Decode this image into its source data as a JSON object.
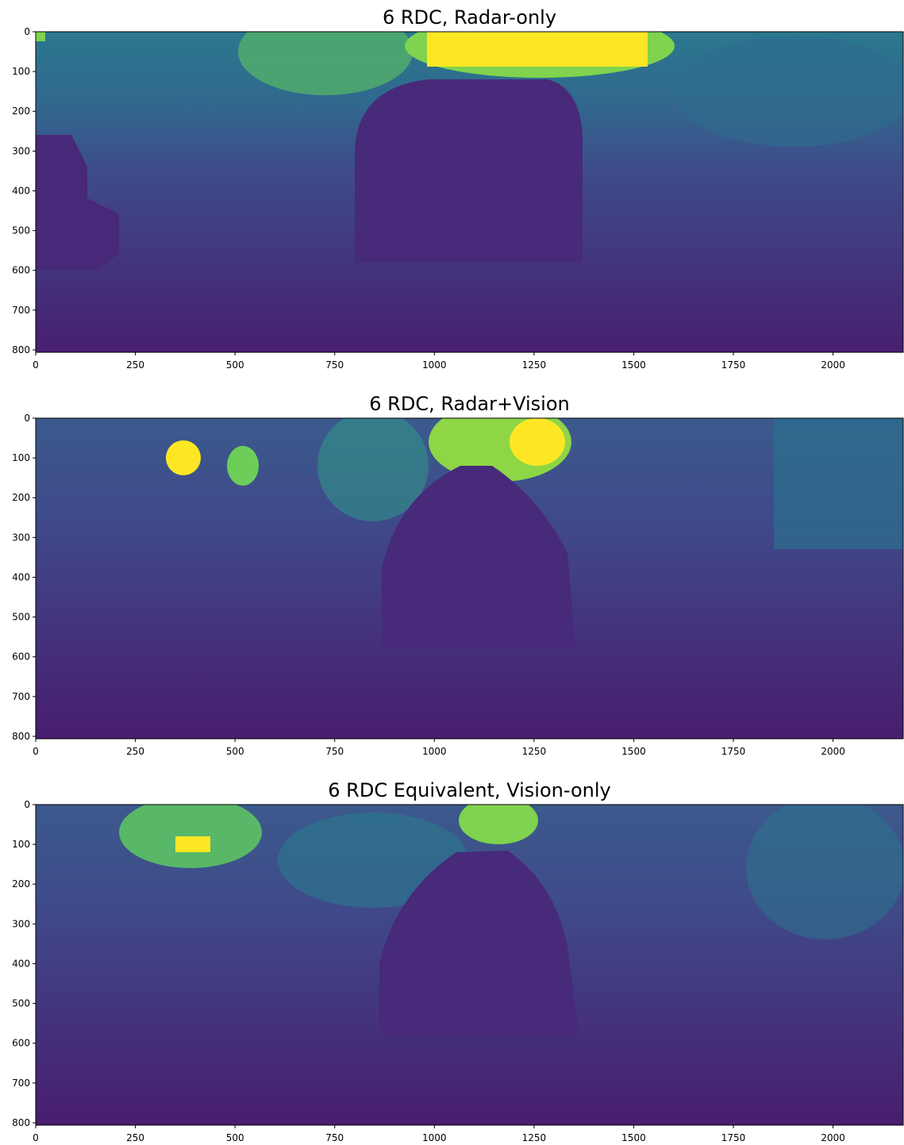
{
  "chart_data": [
    {
      "type": "image",
      "title": "6 RDC, Radar-only",
      "xlim": [
        0,
        2176
      ],
      "ylim": [
        806,
        0
      ],
      "xticks": [
        0,
        250,
        500,
        750,
        1000,
        1250,
        1500,
        1750,
        2000
      ],
      "yticks": [
        0,
        100,
        200,
        300,
        400,
        500,
        600,
        700,
        800
      ]
    },
    {
      "type": "image",
      "title": "6 RDC, Radar+Vision",
      "xlim": [
        0,
        2176
      ],
      "ylim": [
        806,
        0
      ],
      "xticks": [
        0,
        250,
        500,
        750,
        1000,
        1250,
        1500,
        1750,
        2000
      ],
      "yticks": [
        0,
        100,
        200,
        300,
        400,
        500,
        600,
        700,
        800
      ]
    },
    {
      "type": "image",
      "title": "6 RDC Equivalent, Vision-only",
      "xlim": [
        0,
        2176
      ],
      "ylim": [
        806,
        0
      ],
      "xticks": [
        0,
        250,
        500,
        750,
        1000,
        1250,
        1500,
        1750,
        2000
      ],
      "yticks": [
        0,
        100,
        200,
        300,
        400,
        500,
        600,
        700,
        800
      ]
    }
  ]
}
